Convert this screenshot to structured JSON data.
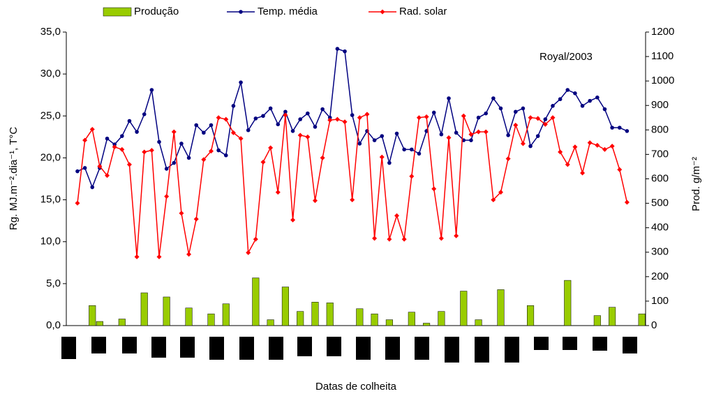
{
  "chart_data": {
    "type": "combo",
    "annotation": "Royal/2003",
    "x_label": "Datas de colheita",
    "y_label": "Rg. MJ.m⁻².dia⁻¹, T°C",
    "y2_label": "Prod. g/m⁻²",
    "categories": [
      null,
      null,
      null,
      null,
      null,
      null,
      null,
      null,
      null,
      null,
      null,
      null,
      null,
      null,
      null,
      null,
      null,
      null,
      null,
      null,
      null,
      null,
      null,
      null,
      null,
      null,
      null,
      null,
      null,
      null,
      null,
      null,
      null,
      null,
      null,
      null,
      null,
      null,
      null,
      null,
      null,
      null,
      null,
      null,
      null,
      null,
      null,
      null,
      null,
      null,
      null,
      null,
      null,
      null,
      null,
      null,
      null,
      null,
      null,
      null,
      null,
      null,
      null,
      null,
      null,
      null,
      null,
      null,
      null,
      null,
      null,
      null,
      null,
      null,
      null,
      null,
      null,
      null
    ],
    "ylim": [
      0,
      35
    ],
    "yticks": [
      {
        "value": 0,
        "label": "0,0"
      },
      {
        "value": 5,
        "label": "5,0"
      },
      {
        "value": 10,
        "label": "10,0"
      },
      {
        "value": 15,
        "label": "15,0"
      },
      {
        "value": 20,
        "label": "20,0"
      },
      {
        "value": 25,
        "label": "25,0"
      },
      {
        "value": 30,
        "label": "30,0"
      },
      {
        "value": 35,
        "label": "35,0"
      }
    ],
    "y2lim": [
      0,
      1200
    ],
    "y2ticks": [
      0,
      100,
      200,
      300,
      400,
      500,
      600,
      700,
      800,
      900,
      1000,
      1100,
      1200
    ],
    "legend": "top",
    "series": [
      {
        "name": "Produção",
        "type": "bar",
        "axis": "y2",
        "color": "#99cc00",
        "values": [
          null,
          null,
          null,
          82,
          17,
          null,
          null,
          27,
          null,
          null,
          134,
          null,
          null,
          117,
          null,
          null,
          72,
          null,
          null,
          48,
          null,
          89,
          null,
          null,
          null,
          195,
          null,
          24,
          null,
          158,
          null,
          58,
          null,
          96,
          null,
          93,
          null,
          null,
          null,
          69,
          null,
          48,
          null,
          24,
          null,
          null,
          55,
          null,
          10,
          null,
          58,
          null,
          null,
          141,
          null,
          24,
          null,
          null,
          147,
          null,
          null,
          null,
          82,
          null,
          null,
          null,
          null,
          185,
          null,
          null,
          null,
          41,
          null,
          75,
          null,
          null,
          null,
          48
        ]
      },
      {
        "name": "Temp. média",
        "type": "line",
        "marker": "circle",
        "color": "#000080",
        "values": [
          null,
          18.4,
          18.8,
          16.5,
          18.8,
          22.3,
          21.6,
          22.6,
          24.4,
          23.1,
          25.2,
          28.1,
          21.9,
          18.7,
          19.4,
          21.7,
          20.0,
          23.9,
          23.0,
          23.9,
          20.9,
          20.3,
          26.2,
          29.0,
          23.3,
          24.7,
          25.0,
          25.9,
          24.0,
          25.5,
          23.2,
          24.6,
          25.3,
          23.7,
          25.8,
          24.8,
          33.0,
          32.7,
          25.1,
          21.7,
          23.2,
          22.1,
          22.6,
          19.4,
          22.9,
          21.0,
          21.0,
          20.5,
          23.2,
          25.4,
          22.8,
          27.1,
          23.0,
          22.1,
          22.1,
          24.8,
          25.3,
          27.1,
          25.9,
          22.7,
          25.5,
          25.9,
          21.4,
          22.6,
          24.6,
          26.2,
          27.0,
          28.1,
          27.7,
          26.2,
          26.8,
          27.2,
          25.8,
          23.6,
          23.6,
          23.2,
          null,
          null
        ]
      },
      {
        "name": "Rad. solar",
        "type": "line",
        "marker": "diamond",
        "color": "#ff0000",
        "values": [
          null,
          14.6,
          22.1,
          23.4,
          19.0,
          17.9,
          21.3,
          21.0,
          19.2,
          8.2,
          20.7,
          20.9,
          8.2,
          15.4,
          23.1,
          13.4,
          8.5,
          12.7,
          19.8,
          20.8,
          24.8,
          24.6,
          23.0,
          22.3,
          8.7,
          10.3,
          19.5,
          21.2,
          15.9,
          25.1,
          12.6,
          22.7,
          22.5,
          14.9,
          20.0,
          24.5,
          24.6,
          24.3,
          15.0,
          24.8,
          25.2,
          10.4,
          20.1,
          10.3,
          13.1,
          10.3,
          17.8,
          24.8,
          24.9,
          16.3,
          10.4,
          22.4,
          10.7,
          25.0,
          22.8,
          23.1,
          23.1,
          15.0,
          15.9,
          19.9,
          23.9,
          21.7,
          24.8,
          24.7,
          24.0,
          24.8,
          20.7,
          19.2,
          21.3,
          18.2,
          21.8,
          21.5,
          21.0,
          21.4,
          18.6,
          14.7,
          null,
          null
        ]
      }
    ]
  }
}
